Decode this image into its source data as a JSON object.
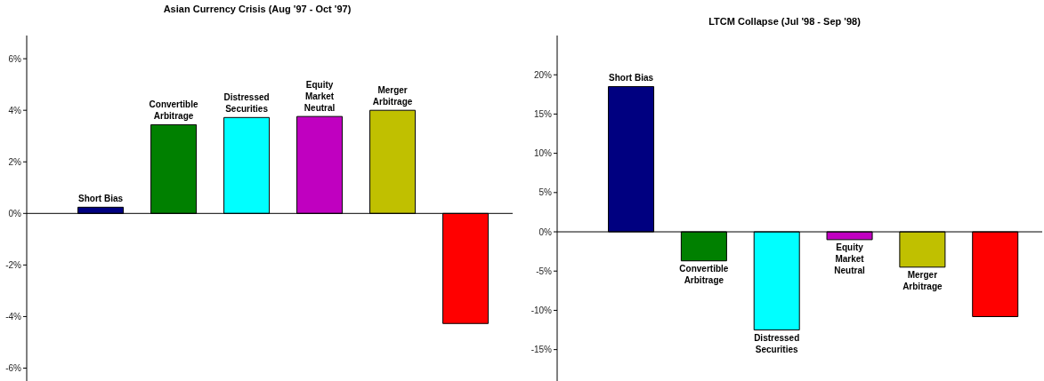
{
  "chart_data": [
    {
      "type": "bar",
      "title": "Asian Currency Crisis (Aug '97 - Oct '97)",
      "categories": [
        "Short Bias",
        "Convertible Arbitrage",
        "Distressed Securities",
        "Equity Market Neutral",
        "Merger Arbitrage",
        null
      ],
      "values": [
        0.24,
        3.44,
        3.72,
        3.76,
        4.0,
        -4.27
      ],
      "colors": [
        "#000080",
        "#008000",
        "#00ffff",
        "#c000c0",
        "#c0c000",
        "#ff0000"
      ],
      "ylim": [
        -6.5,
        6.9
      ],
      "yticks": [
        {
          "value": -6,
          "label": "-6%"
        },
        {
          "value": -4,
          "label": "-4%"
        },
        {
          "value": -2,
          "label": "-2%"
        },
        {
          "value": 0,
          "label": "0%"
        },
        {
          "value": 2,
          "label": "2%"
        },
        {
          "value": 4,
          "label": "4%"
        },
        {
          "value": 6,
          "label": "6%"
        }
      ]
    },
    {
      "type": "bar",
      "title": "LTCM Collapse (Jul '98 - Sep '98)",
      "categories": [
        "Short Bias",
        "Convertible Arbitrage",
        "Distressed Securities",
        "Equity Market Neutral",
        "Merger Arbitrage",
        null
      ],
      "values": [
        18.5,
        -3.7,
        -12.5,
        -1.0,
        -4.5,
        -10.8
      ],
      "colors": [
        "#000080",
        "#008000",
        "#00ffff",
        "#c000c0",
        "#c0c000",
        "#ff0000"
      ],
      "ylim": [
        -19,
        25
      ],
      "yticks": [
        {
          "value": -15,
          "label": "-15%"
        },
        {
          "value": -10,
          "label": "-10%"
        },
        {
          "value": -5,
          "label": "-5%"
        },
        {
          "value": 0,
          "label": "0%"
        },
        {
          "value": 5,
          "label": "5%"
        },
        {
          "value": 10,
          "label": "10%"
        },
        {
          "value": 15,
          "label": "15%"
        },
        {
          "value": 20,
          "label": "20%"
        }
      ]
    }
  ]
}
